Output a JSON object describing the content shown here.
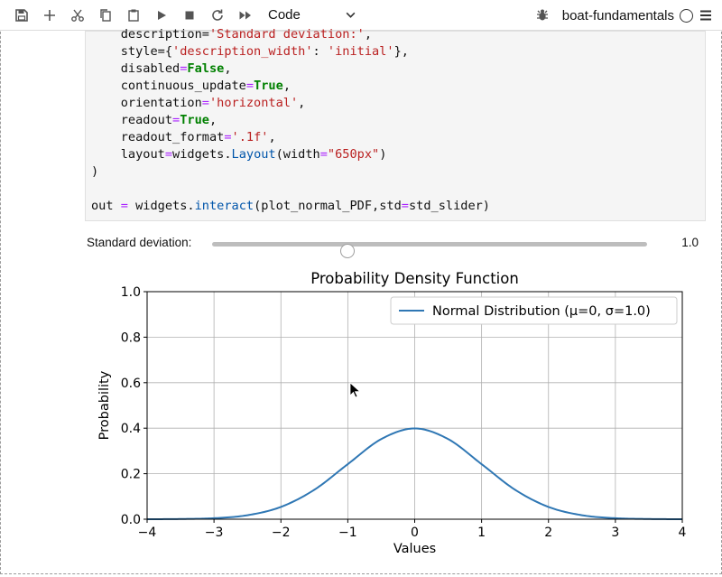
{
  "toolbar": {
    "items": [
      "save-icon",
      "add-icon",
      "cut-icon",
      "copy-icon",
      "paste-icon",
      "run-icon",
      "stop-icon",
      "restart-icon",
      "fast-forward-icon"
    ],
    "cell_type": "Code",
    "kernel_name": "boat-fundamentals"
  },
  "code": {
    "lines": [
      "    description='Standard deviation:',",
      "    style={'description_width': 'initial'},",
      "    disabled=False,",
      "    continuous_update=True,",
      "    orientation='horizontal',",
      "    readout=True,",
      "    readout_format='.1f',",
      "    layout=widgets.Layout(width=\"650px\")",
      ")",
      "",
      "out = widgets.interact(plot_normal_PDF,std=std_slider)"
    ]
  },
  "slider": {
    "label": "Standard deviation:",
    "value": 1.0,
    "value_text": "1.0",
    "min": 0.1,
    "max": 3.0
  },
  "chart_data": {
    "type": "line",
    "title": "Probability Density Function",
    "xlabel": "Values",
    "ylabel": "Probability",
    "xlim": [
      -4,
      4
    ],
    "ylim": [
      0,
      1.0
    ],
    "xticks": [
      -4,
      -3,
      -2,
      -1,
      0,
      1,
      2,
      3,
      4
    ],
    "xtick_labels": [
      "−4",
      "−3",
      "−2",
      "−1",
      "0",
      "1",
      "2",
      "3",
      "4"
    ],
    "yticks": [
      0,
      0.2,
      0.4,
      0.6,
      0.8,
      1.0
    ],
    "ytick_labels": [
      "0.0",
      "0.2",
      "0.4",
      "0.6",
      "0.8",
      "1.0"
    ],
    "grid": true,
    "legend_position": "top-right",
    "series": [
      {
        "name": "Normal Distribution (μ=0, σ=1.0)",
        "color": "#2f77b4",
        "x": [
          -4,
          -3.5,
          -3,
          -2.5,
          -2,
          -1.5,
          -1,
          -0.5,
          0,
          0.5,
          1,
          1.5,
          2,
          2.5,
          3,
          3.5,
          4
        ],
        "y": [
          0.0001,
          0.0009,
          0.0044,
          0.0175,
          0.054,
          0.1295,
          0.242,
          0.3521,
          0.3989,
          0.3521,
          0.242,
          0.1295,
          0.054,
          0.0175,
          0.0044,
          0.0009,
          0.0001
        ]
      }
    ]
  }
}
